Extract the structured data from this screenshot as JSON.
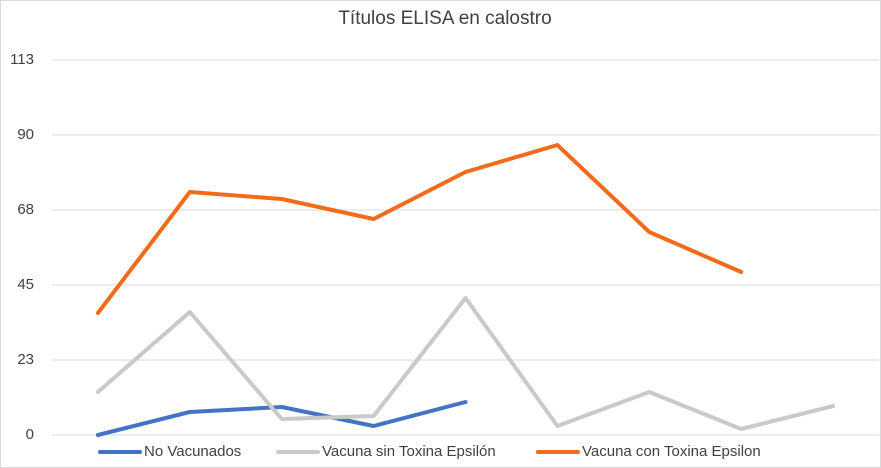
{
  "chart_data": {
    "type": "line",
    "title": "Títulos ELISA en calostro",
    "categories": [
      null,
      null,
      null,
      null,
      null,
      null,
      null,
      null,
      null
    ],
    "series": [
      {
        "name": "No Vacunados",
        "color": "#4472c4",
        "values": [
          0,
          6.9,
          8.4,
          2.7,
          9.9,
          null,
          null,
          null,
          null
        ]
      },
      {
        "name": "Vacuna sin Toxina Epsilón",
        "color": "#c9c9c9",
        "values": [
          12.9,
          36.9,
          4.8,
          5.7,
          41.1,
          2.7,
          12.9,
          1.8,
          8.7
        ]
      },
      {
        "name": "Vacuna con Toxina Epsilon",
        "color": "#f26b1d",
        "values": [
          36.6,
          72.9,
          70.8,
          64.8,
          78.9,
          87,
          60.9,
          48.9,
          null
        ]
      }
    ],
    "ylim": [
      0,
      112.5
    ],
    "yticks": [
      0,
      {
        "value": 22.5,
        "label": "23"
      },
      45,
      {
        "value": 67.5,
        "label": "68"
      },
      90,
      {
        "value": 112.5,
        "label": "113"
      }
    ],
    "grid": true,
    "legend": "bottom"
  }
}
